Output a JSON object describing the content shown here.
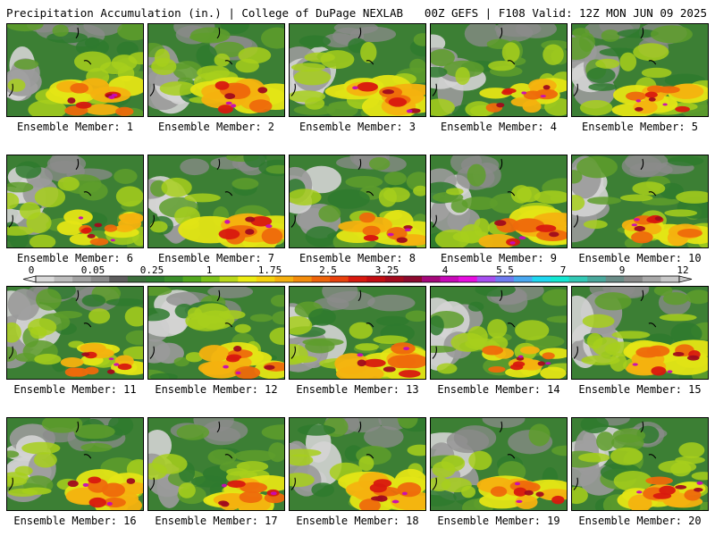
{
  "header": {
    "left_title": "Precipitation Accumulation (in.) | College of DuPage NEXLAB",
    "right_title": "00Z GEFS | F108 Valid: 12Z MON JUN 09 2025"
  },
  "panel_caption_prefix": "Ensemble Member: ",
  "members": [
    {
      "label": "Ensemble Member: 1",
      "num": 1,
      "intensity": 0.72
    },
    {
      "label": "Ensemble Member: 2",
      "num": 2,
      "intensity": 0.85
    },
    {
      "label": "Ensemble Member: 3",
      "num": 3,
      "intensity": 0.8
    },
    {
      "label": "Ensemble Member: 4",
      "num": 4,
      "intensity": 0.55
    },
    {
      "label": "Ensemble Member: 5",
      "num": 5,
      "intensity": 0.6
    },
    {
      "label": "Ensemble Member: 6",
      "num": 6,
      "intensity": 0.45
    },
    {
      "label": "Ensemble Member: 7",
      "num": 7,
      "intensity": 0.9
    },
    {
      "label": "Ensemble Member: 8",
      "num": 8,
      "intensity": 0.7
    },
    {
      "label": "Ensemble Member: 9",
      "num": 9,
      "intensity": 0.82
    },
    {
      "label": "Ensemble Member: 10",
      "num": 10,
      "intensity": 0.65
    },
    {
      "label": "Ensemble Member: 11",
      "num": 11,
      "intensity": 0.5
    },
    {
      "label": "Ensemble Member: 12",
      "num": 12,
      "intensity": 0.7
    },
    {
      "label": "Ensemble Member: 13",
      "num": 13,
      "intensity": 0.85
    },
    {
      "label": "Ensemble Member: 14",
      "num": 14,
      "intensity": 0.5
    },
    {
      "label": "Ensemble Member: 15",
      "num": 15,
      "intensity": 0.75
    },
    {
      "label": "Ensemble Member: 16",
      "num": 16,
      "intensity": 0.8
    },
    {
      "label": "Ensemble Member: 17",
      "num": 17,
      "intensity": 0.75
    },
    {
      "label": "Ensemble Member: 18",
      "num": 18,
      "intensity": 0.82
    },
    {
      "label": "Ensemble Member: 19",
      "num": 19,
      "intensity": 0.72
    },
    {
      "label": "Ensemble Member: 20",
      "num": 20,
      "intensity": 0.7
    }
  ],
  "colorbar": {
    "tick_labels": [
      "0",
      "0.05",
      "0.25",
      "1",
      "1.75",
      "2.5",
      "3.25",
      "4",
      "5.5",
      "7",
      "9",
      "12"
    ],
    "colors": [
      "#d9d9d9",
      "#bdbdbd",
      "#a3a3a3",
      "#8c8c8c",
      "#5d5d5d",
      "#3c6f3c",
      "#2f7d2f",
      "#3a8f2a",
      "#52a81f",
      "#7dc31a",
      "#b9d81a",
      "#ecec14",
      "#f5d20f",
      "#f5b00f",
      "#f38c0c",
      "#ee640b",
      "#e8410d",
      "#d8190f",
      "#c20d12",
      "#a30b1e",
      "#8c0a2e",
      "#a4087a",
      "#c70ab8",
      "#e60ee0",
      "#a64ff0",
      "#6f7cf0",
      "#4aa8f0",
      "#1fd7f0",
      "#14e8d2",
      "#33c9b5",
      "#4aa89c",
      "#6b8d88",
      "#8b8b8b",
      "#a8a8a8",
      "#c8c8c8"
    ]
  }
}
